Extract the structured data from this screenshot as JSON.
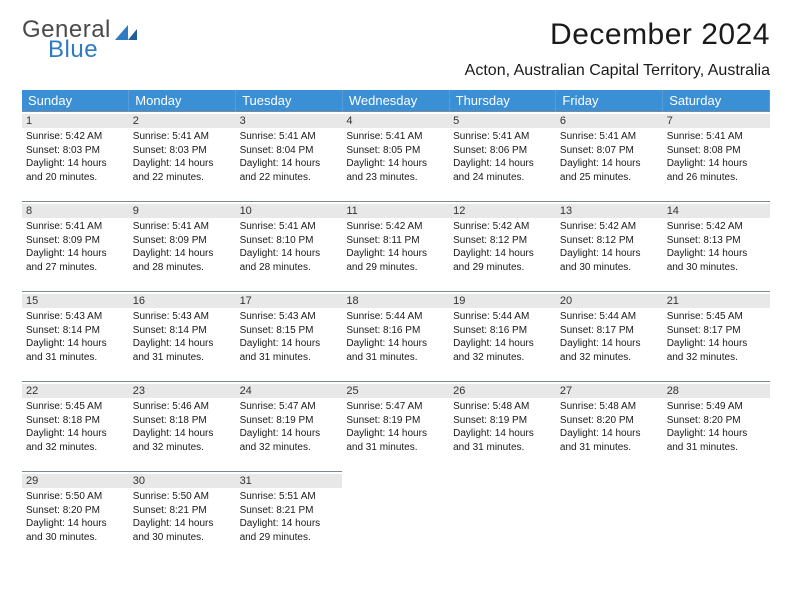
{
  "logo": {
    "word1": "General",
    "word2": "Blue"
  },
  "title": "December 2024",
  "location": "Acton, Australian Capital Territory, Australia",
  "theme": {
    "header_bg": "#3b8fd4",
    "header_fg": "#ffffff",
    "daynum_bg": "#e8e8e8",
    "rule": "#7a8a99",
    "logo_gray": "#4a4a4a",
    "logo_blue": "#2e7bc4"
  },
  "dayNames": [
    "Sunday",
    "Monday",
    "Tuesday",
    "Wednesday",
    "Thursday",
    "Friday",
    "Saturday"
  ],
  "weeks": [
    [
      {
        "n": "1",
        "sr": "5:42 AM",
        "ss": "8:03 PM",
        "dl": "14 hours and 20 minutes."
      },
      {
        "n": "2",
        "sr": "5:41 AM",
        "ss": "8:03 PM",
        "dl": "14 hours and 22 minutes."
      },
      {
        "n": "3",
        "sr": "5:41 AM",
        "ss": "8:04 PM",
        "dl": "14 hours and 22 minutes."
      },
      {
        "n": "4",
        "sr": "5:41 AM",
        "ss": "8:05 PM",
        "dl": "14 hours and 23 minutes."
      },
      {
        "n": "5",
        "sr": "5:41 AM",
        "ss": "8:06 PM",
        "dl": "14 hours and 24 minutes."
      },
      {
        "n": "6",
        "sr": "5:41 AM",
        "ss": "8:07 PM",
        "dl": "14 hours and 25 minutes."
      },
      {
        "n": "7",
        "sr": "5:41 AM",
        "ss": "8:08 PM",
        "dl": "14 hours and 26 minutes."
      }
    ],
    [
      {
        "n": "8",
        "sr": "5:41 AM",
        "ss": "8:09 PM",
        "dl": "14 hours and 27 minutes."
      },
      {
        "n": "9",
        "sr": "5:41 AM",
        "ss": "8:09 PM",
        "dl": "14 hours and 28 minutes."
      },
      {
        "n": "10",
        "sr": "5:41 AM",
        "ss": "8:10 PM",
        "dl": "14 hours and 28 minutes."
      },
      {
        "n": "11",
        "sr": "5:42 AM",
        "ss": "8:11 PM",
        "dl": "14 hours and 29 minutes."
      },
      {
        "n": "12",
        "sr": "5:42 AM",
        "ss": "8:12 PM",
        "dl": "14 hours and 29 minutes."
      },
      {
        "n": "13",
        "sr": "5:42 AM",
        "ss": "8:12 PM",
        "dl": "14 hours and 30 minutes."
      },
      {
        "n": "14",
        "sr": "5:42 AM",
        "ss": "8:13 PM",
        "dl": "14 hours and 30 minutes."
      }
    ],
    [
      {
        "n": "15",
        "sr": "5:43 AM",
        "ss": "8:14 PM",
        "dl": "14 hours and 31 minutes."
      },
      {
        "n": "16",
        "sr": "5:43 AM",
        "ss": "8:14 PM",
        "dl": "14 hours and 31 minutes."
      },
      {
        "n": "17",
        "sr": "5:43 AM",
        "ss": "8:15 PM",
        "dl": "14 hours and 31 minutes."
      },
      {
        "n": "18",
        "sr": "5:44 AM",
        "ss": "8:16 PM",
        "dl": "14 hours and 31 minutes."
      },
      {
        "n": "19",
        "sr": "5:44 AM",
        "ss": "8:16 PM",
        "dl": "14 hours and 32 minutes."
      },
      {
        "n": "20",
        "sr": "5:44 AM",
        "ss": "8:17 PM",
        "dl": "14 hours and 32 minutes."
      },
      {
        "n": "21",
        "sr": "5:45 AM",
        "ss": "8:17 PM",
        "dl": "14 hours and 32 minutes."
      }
    ],
    [
      {
        "n": "22",
        "sr": "5:45 AM",
        "ss": "8:18 PM",
        "dl": "14 hours and 32 minutes."
      },
      {
        "n": "23",
        "sr": "5:46 AM",
        "ss": "8:18 PM",
        "dl": "14 hours and 32 minutes."
      },
      {
        "n": "24",
        "sr": "5:47 AM",
        "ss": "8:19 PM",
        "dl": "14 hours and 32 minutes."
      },
      {
        "n": "25",
        "sr": "5:47 AM",
        "ss": "8:19 PM",
        "dl": "14 hours and 31 minutes."
      },
      {
        "n": "26",
        "sr": "5:48 AM",
        "ss": "8:19 PM",
        "dl": "14 hours and 31 minutes."
      },
      {
        "n": "27",
        "sr": "5:48 AM",
        "ss": "8:20 PM",
        "dl": "14 hours and 31 minutes."
      },
      {
        "n": "28",
        "sr": "5:49 AM",
        "ss": "8:20 PM",
        "dl": "14 hours and 31 minutes."
      }
    ],
    [
      {
        "n": "29",
        "sr": "5:50 AM",
        "ss": "8:20 PM",
        "dl": "14 hours and 30 minutes."
      },
      {
        "n": "30",
        "sr": "5:50 AM",
        "ss": "8:21 PM",
        "dl": "14 hours and 30 minutes."
      },
      {
        "n": "31",
        "sr": "5:51 AM",
        "ss": "8:21 PM",
        "dl": "14 hours and 29 minutes."
      },
      null,
      null,
      null,
      null
    ]
  ],
  "labels": {
    "sunrise": "Sunrise:",
    "sunset": "Sunset:",
    "daylight": "Daylight:"
  }
}
